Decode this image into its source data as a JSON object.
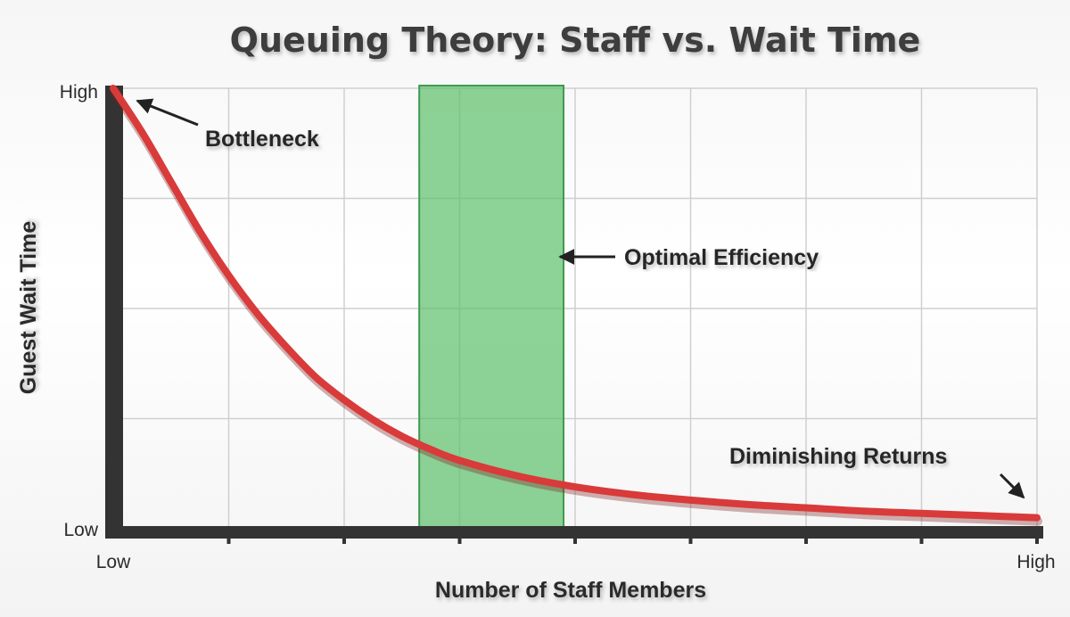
{
  "chart_data": {
    "type": "line",
    "title": "Queuing Theory: Staff vs. Wait Time",
    "xlabel": "Number of Staff Members",
    "ylabel": "Guest Wait Time",
    "x_tick_labels": {
      "min": "Low",
      "max": "High"
    },
    "y_tick_labels": {
      "min": "Low",
      "max": "High"
    },
    "xlim": [
      0,
      8
    ],
    "ylim": [
      0,
      4
    ],
    "grid": true,
    "series": [
      {
        "color": "#d93a3a",
        "x": [
          0,
          0.25,
          0.5,
          0.75,
          1,
          1.25,
          1.5,
          1.75,
          2,
          2.25,
          2.5,
          2.75,
          3,
          3.5,
          4,
          4.5,
          5,
          5.5,
          6,
          6.5,
          7,
          7.5,
          8
        ],
        "y": [
          4.0,
          3.6,
          3.15,
          2.7,
          2.3,
          1.95,
          1.65,
          1.38,
          1.17,
          0.99,
          0.84,
          0.72,
          0.62,
          0.48,
          0.38,
          0.31,
          0.26,
          0.22,
          0.19,
          0.16,
          0.14,
          0.12,
          0.1
        ]
      }
    ],
    "highlight_band": {
      "x_start": 2.65,
      "x_end": 3.9,
      "color": "#5cbf6a",
      "label": "Optimal Efficiency"
    },
    "annotations": [
      {
        "text": "Bottleneck",
        "target": [
          0.1,
          3.95
        ]
      },
      {
        "text": "Optimal Efficiency",
        "target": [
          3.9,
          2.5
        ]
      },
      {
        "text": "Diminishing Returns",
        "target": [
          7.9,
          0.12
        ]
      }
    ]
  }
}
